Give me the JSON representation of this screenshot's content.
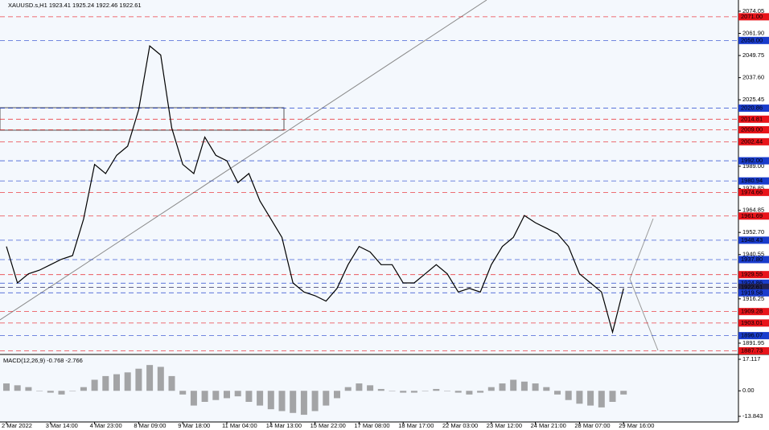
{
  "chart_data": {
    "type": "line",
    "title": "XAUUSD.s,H1  1923.41 1925.24 1922.46 1922.61",
    "categories": [
      "2 Mar 2022",
      null,
      null,
      null,
      "3 Mar 14:00",
      null,
      null,
      null,
      "4 Mar 23:00",
      null,
      null,
      null,
      "8 Mar 09:00",
      null,
      null,
      null,
      "9 Mar 18:00",
      null,
      null,
      null,
      "11 Mar 04:00",
      null,
      null,
      null,
      "14 Mar 13:00",
      null,
      null,
      null,
      "15 Mar 22:00",
      null,
      null,
      null,
      "17 Mar 08:00",
      null,
      null,
      null,
      "18 Mar 17:00",
      null,
      null,
      null,
      "22 Mar 03:00",
      null,
      null,
      null,
      "23 Mar 12:00",
      null,
      null,
      null,
      "24 Mar 21:00",
      null,
      null,
      null,
      "28 Mar 07:00",
      null,
      null,
      null,
      "29 Mar 16:00"
    ],
    "series": [
      {
        "color": "#000000",
        "values": [
          1945,
          1925,
          1930,
          1932,
          1935,
          1938,
          1940,
          1960,
          1990,
          1985,
          1995,
          2000,
          2020,
          2055,
          2050,
          2010,
          1990,
          1985,
          2005,
          1995,
          1992,
          1980,
          1985,
          1970,
          1960,
          1950,
          1925,
          1920,
          1918,
          1915,
          1922,
          1935,
          1945,
          1942,
          1935,
          1935,
          1925,
          1925,
          1930,
          1935,
          1930,
          1920,
          1922,
          1920,
          1935,
          1945,
          1950,
          1962,
          1958,
          1955,
          1952,
          1945,
          1930,
          1925,
          1920,
          1898,
          1922
        ]
      }
    ],
    "ylim": [
      1886.2,
      2080.2
    ],
    "yticks": [
      2074.05,
      {
        "value": 2061.9,
        "label": "2061.90"
      },
      2049.75,
      {
        "value": 2037.6,
        "label": "2037.60"
      },
      2025.45,
      {
        "value": 1989,
        "label": "1989.00"
      },
      1976.85,
      1964.85,
      {
        "value": 1952.7,
        "label": "1952.70"
      },
      1940.55,
      1916.25,
      1891.95
    ],
    "levels": [
      {
        "value": 2071,
        "label": "2071.00",
        "color": "#e8141a"
      },
      {
        "value": 2058,
        "label": "2058.00",
        "color": "#1a3ccc"
      },
      {
        "value": 2020.86,
        "label": "2020.86",
        "color": "#1a3ccc"
      },
      {
        "value": 2014.81,
        "label": "2014.81",
        "color": "#e8141a"
      },
      {
        "value": 2009,
        "label": "2009.00",
        "color": "#e8141a"
      },
      {
        "value": 2002.44,
        "label": "2002.44",
        "color": "#e8141a"
      },
      {
        "value": 1992,
        "label": "1992.00",
        "color": "#1a3ccc"
      },
      {
        "value": 1980.94,
        "label": "1980.94",
        "color": "#1a3ccc"
      },
      {
        "value": 1974.66,
        "label": "1974.66",
        "color": "#e8141a"
      },
      {
        "value": 1961.69,
        "label": "1961.69",
        "color": "#e8141a"
      },
      {
        "value": 1948.43,
        "label": "1948.43",
        "color": "#1a3ccc"
      },
      {
        "value": 1937.8,
        "label": "1937.80",
        "color": "#1a3ccc"
      },
      {
        "value": 1929.55,
        "label": "1929.55",
        "color": "#e8141a"
      },
      {
        "value": 1924.86,
        "label": "1924.86",
        "color": "#1a3ccc"
      },
      {
        "value": 1922.61,
        "label": "1922.61",
        "color": "#222255"
      },
      {
        "value": 1919.58,
        "label": "1919.58",
        "color": "#1a3ccc"
      },
      {
        "value": 1909.28,
        "label": "1909.28",
        "color": "#e8141a"
      },
      {
        "value": 1903.01,
        "label": "1903.01",
        "color": "#e8141a"
      },
      {
        "value": 1896.07,
        "label": "1896.07",
        "color": "#1a3ccc"
      },
      {
        "value": 1887.73,
        "label": "1887.73",
        "color": "#e8141a"
      }
    ],
    "macd": {
      "title": "MACD(12,26,9) -0.768 -2.766",
      "color": "#808080",
      "values": [
        4,
        3,
        2,
        0,
        -1,
        -2,
        0,
        2,
        6,
        8,
        9,
        10,
        12,
        14,
        13,
        8,
        -2,
        -8,
        -6,
        -5,
        -4,
        -3,
        -6,
        -8,
        -10,
        -11,
        -12,
        -13,
        -11,
        -8,
        -4,
        2,
        4,
        3,
        1,
        0,
        -1,
        -1,
        0,
        1,
        0,
        -1,
        -2,
        -1,
        2,
        4,
        6,
        5,
        4,
        2,
        -2,
        -5,
        -7,
        -8,
        -9,
        -6,
        -2
      ],
      "ylim": [
        -16.9,
        18.86
      ],
      "yticks": [
        17.117,
        {
          "value": 0,
          "label": "0.00"
        },
        -13.843
      ]
    }
  }
}
